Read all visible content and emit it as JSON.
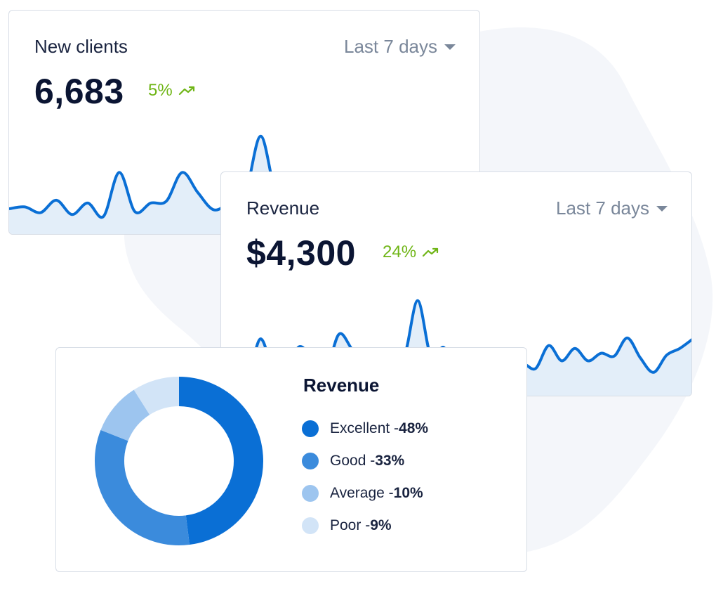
{
  "clients_card": {
    "title": "New clients",
    "period": "Last 7 days",
    "value": "6,683",
    "trend": "5%",
    "trend_icon": "trending-up-icon",
    "series": [
      22,
      24,
      18,
      31,
      16,
      28,
      14,
      60,
      19,
      28,
      30,
      60,
      39,
      21,
      28,
      36,
      98,
      36,
      38,
      28,
      36,
      31,
      49,
      28,
      37,
      44,
      35,
      50,
      56,
      23,
      40
    ]
  },
  "revenue_card": {
    "title": "Revenue",
    "period": "Last 7 days",
    "value": "$4,300",
    "trend": "24%",
    "trend_icon": "trending-up-icon",
    "series": [
      33,
      30,
      14,
      55,
      22,
      26,
      47,
      33,
      22,
      60,
      44,
      29,
      18,
      40,
      38,
      95,
      37,
      46,
      20,
      40,
      32,
      23,
      10,
      28,
      24,
      48,
      32,
      45,
      32,
      40,
      37,
      56,
      35,
      20,
      38,
      45,
      55
    ]
  },
  "donut_card": {
    "title": "Revenue",
    "legend": [
      {
        "label": "Excellent - ",
        "value": "48%"
      },
      {
        "label": "Good - ",
        "value": "33%"
      },
      {
        "label": "Average - ",
        "value": "10%"
      },
      {
        "label": "Poor - ",
        "value": "9%"
      }
    ]
  },
  "chart_data": {
    "type": "pie",
    "title": "Revenue",
    "categories": [
      "Excellent",
      "Good",
      "Average",
      "Poor"
    ],
    "values": [
      48,
      33,
      10,
      9
    ],
    "colors": [
      "#0a6fd5",
      "#3b8bdc",
      "#9dc5ef",
      "#d2e4f7"
    ]
  },
  "colors": {
    "line": "#0a6fd5",
    "area": "#e3eef9",
    "trend_up": "#6fb516",
    "blob": "#f4f6fa"
  }
}
